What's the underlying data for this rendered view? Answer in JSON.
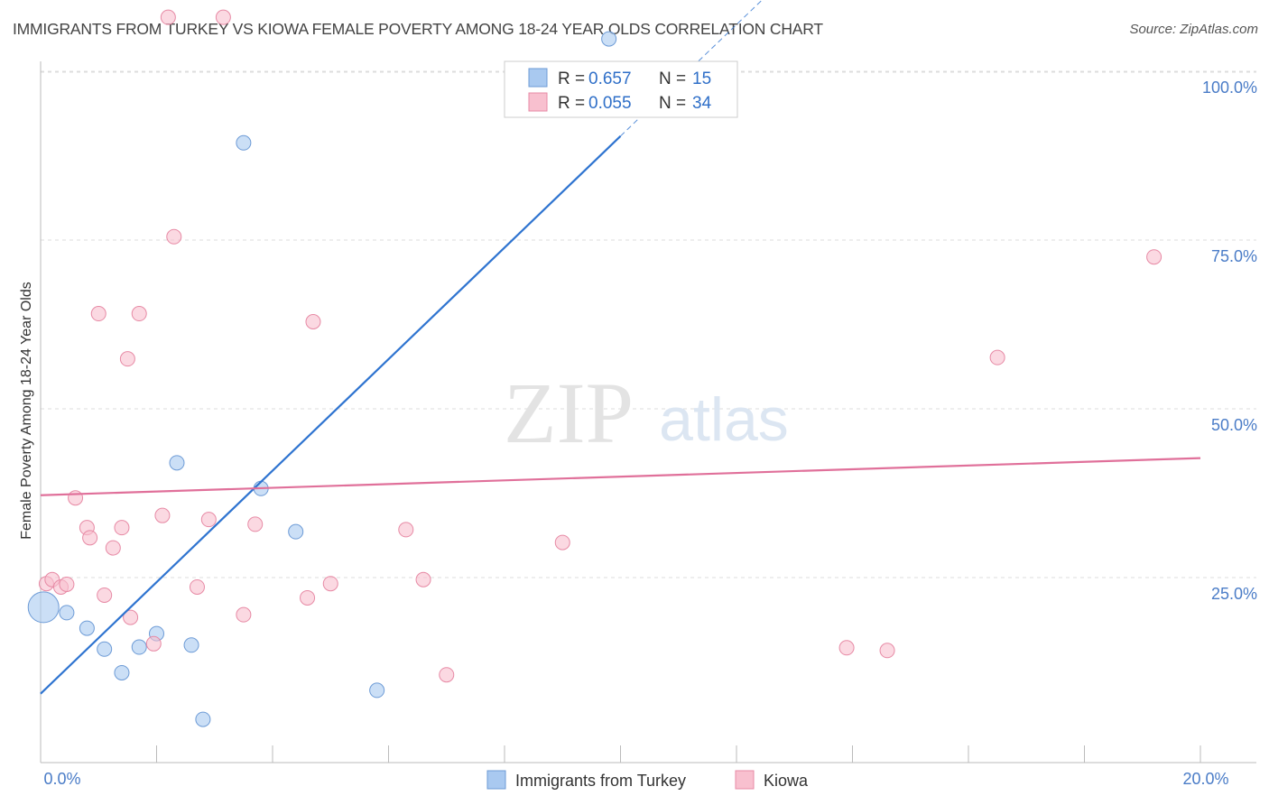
{
  "header": {
    "title": "IMMIGRANTS FROM TURKEY VS KIOWA FEMALE POVERTY AMONG 18-24 YEAR OLDS CORRELATION CHART",
    "source": "Source: ZipAtlas.com"
  },
  "watermark": {
    "zip": "ZIP",
    "atlas": "atlas"
  },
  "chart_data": {
    "type": "scatter",
    "title": "IMMIGRANTS FROM TURKEY VS KIOWA FEMALE POVERTY AMONG 18-24 YEAR OLDS CORRELATION CHART",
    "xlabel": "",
    "ylabel": "Female Poverty Among 18-24 Year Olds",
    "xlim": [
      0,
      20
    ],
    "ylim": [
      0,
      100
    ],
    "x_tick_labels": [
      {
        "value": 0,
        "label": "0.0%"
      },
      {
        "value": 20,
        "label": "20.0%"
      }
    ],
    "y_tick_labels": [
      {
        "value": 25,
        "label": "25.0%"
      },
      {
        "value": 50,
        "label": "50.0%"
      },
      {
        "value": 75,
        "label": "75.0%"
      },
      {
        "value": 100,
        "label": "100.0%"
      }
    ],
    "grid": true,
    "legend_placement": "top-center",
    "series": [
      {
        "name": "Immigrants from Turkey",
        "color": "#a9c9f0",
        "stroke": "#6d9bd6",
        "line_color": "#2f74d0",
        "R": "0.657",
        "N": "15",
        "trend": {
          "x0": 0,
          "y0": 7.8,
          "x1": 10,
          "y1": 90.4,
          "dash_to_x": 12.6
        },
        "points": [
          {
            "x": 0.05,
            "y": 20.6,
            "big": true
          },
          {
            "x": 0.45,
            "y": 19.8
          },
          {
            "x": 0.8,
            "y": 17.5
          },
          {
            "x": 1.1,
            "y": 14.4
          },
          {
            "x": 1.4,
            "y": 10.9
          },
          {
            "x": 1.7,
            "y": 14.7
          },
          {
            "x": 2.0,
            "y": 16.7
          },
          {
            "x": 2.35,
            "y": 42.0
          },
          {
            "x": 2.6,
            "y": 15.0
          },
          {
            "x": 2.8,
            "y": 4.0
          },
          {
            "x": 3.5,
            "y": 89.4
          },
          {
            "x": 3.8,
            "y": 38.2
          },
          {
            "x": 4.4,
            "y": 31.8
          },
          {
            "x": 5.8,
            "y": 8.3
          },
          {
            "x": 9.8,
            "y": 104.8
          }
        ]
      },
      {
        "name": "Kiowa",
        "color": "#f8c0cf",
        "stroke": "#e78aa5",
        "line_color": "#e0709a",
        "R": "0.055",
        "N": "34",
        "trend": {
          "x0": 0,
          "y0": 37.2,
          "x1": 20,
          "y1": 42.7
        },
        "points": [
          {
            "x": 0.1,
            "y": 24.1
          },
          {
            "x": 0.2,
            "y": 24.7
          },
          {
            "x": 0.35,
            "y": 23.6
          },
          {
            "x": 0.45,
            "y": 24.0
          },
          {
            "x": 0.6,
            "y": 36.8
          },
          {
            "x": 0.8,
            "y": 32.4
          },
          {
            "x": 0.85,
            "y": 30.9
          },
          {
            "x": 1.0,
            "y": 64.1
          },
          {
            "x": 1.1,
            "y": 22.4
          },
          {
            "x": 1.25,
            "y": 29.4
          },
          {
            "x": 1.4,
            "y": 32.4
          },
          {
            "x": 1.5,
            "y": 57.4
          },
          {
            "x": 1.55,
            "y": 19.1
          },
          {
            "x": 1.7,
            "y": 64.1
          },
          {
            "x": 1.95,
            "y": 15.2
          },
          {
            "x": 2.1,
            "y": 34.2
          },
          {
            "x": 2.2,
            "y": 108.0
          },
          {
            "x": 2.3,
            "y": 75.5
          },
          {
            "x": 2.7,
            "y": 23.6
          },
          {
            "x": 2.9,
            "y": 33.6
          },
          {
            "x": 3.15,
            "y": 108.0
          },
          {
            "x": 3.5,
            "y": 19.5
          },
          {
            "x": 3.7,
            "y": 32.9
          },
          {
            "x": 4.6,
            "y": 22.0
          },
          {
            "x": 4.7,
            "y": 62.9
          },
          {
            "x": 5.0,
            "y": 24.1
          },
          {
            "x": 6.3,
            "y": 32.1
          },
          {
            "x": 6.6,
            "y": 24.7
          },
          {
            "x": 7.0,
            "y": 10.6
          },
          {
            "x": 9.0,
            "y": 30.2
          },
          {
            "x": 13.9,
            "y": 14.6
          },
          {
            "x": 14.6,
            "y": 14.2
          },
          {
            "x": 16.5,
            "y": 57.6
          },
          {
            "x": 19.2,
            "y": 72.5
          }
        ]
      }
    ]
  }
}
